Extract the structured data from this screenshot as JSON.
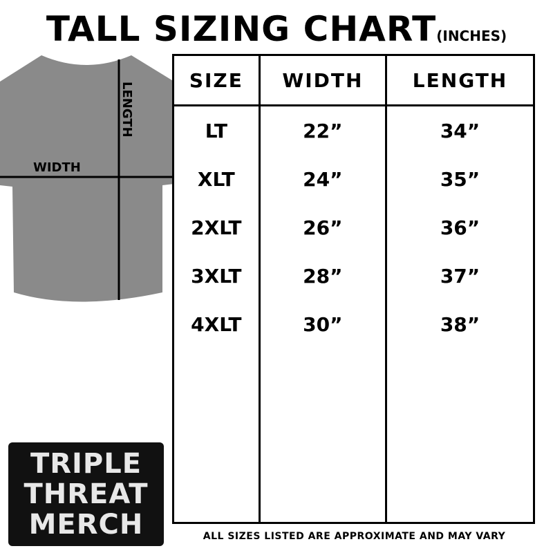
{
  "title": "TALL SIZING CHART",
  "unit": "(INCHES)",
  "diagram": {
    "length_label": "LENGTH",
    "width_label": "WIDTH",
    "shirt_color": "#8a8a8a"
  },
  "table": {
    "headers": [
      "SIZE",
      "WIDTH",
      "LENGTH"
    ],
    "rows": [
      [
        "LT",
        "22”",
        "34”"
      ],
      [
        "XLT",
        "24”",
        "35”"
      ],
      [
        "2XLT",
        "26”",
        "36”"
      ],
      [
        "3XLT",
        "28”",
        "37”"
      ],
      [
        "4XLT",
        "30”",
        "38”"
      ]
    ]
  },
  "footer": "ALL SIZES LISTED ARE APPROXIMATE AND MAY VARY",
  "logo": {
    "lines": [
      "TRIPLE",
      "THREAT",
      "MERCH"
    ]
  }
}
